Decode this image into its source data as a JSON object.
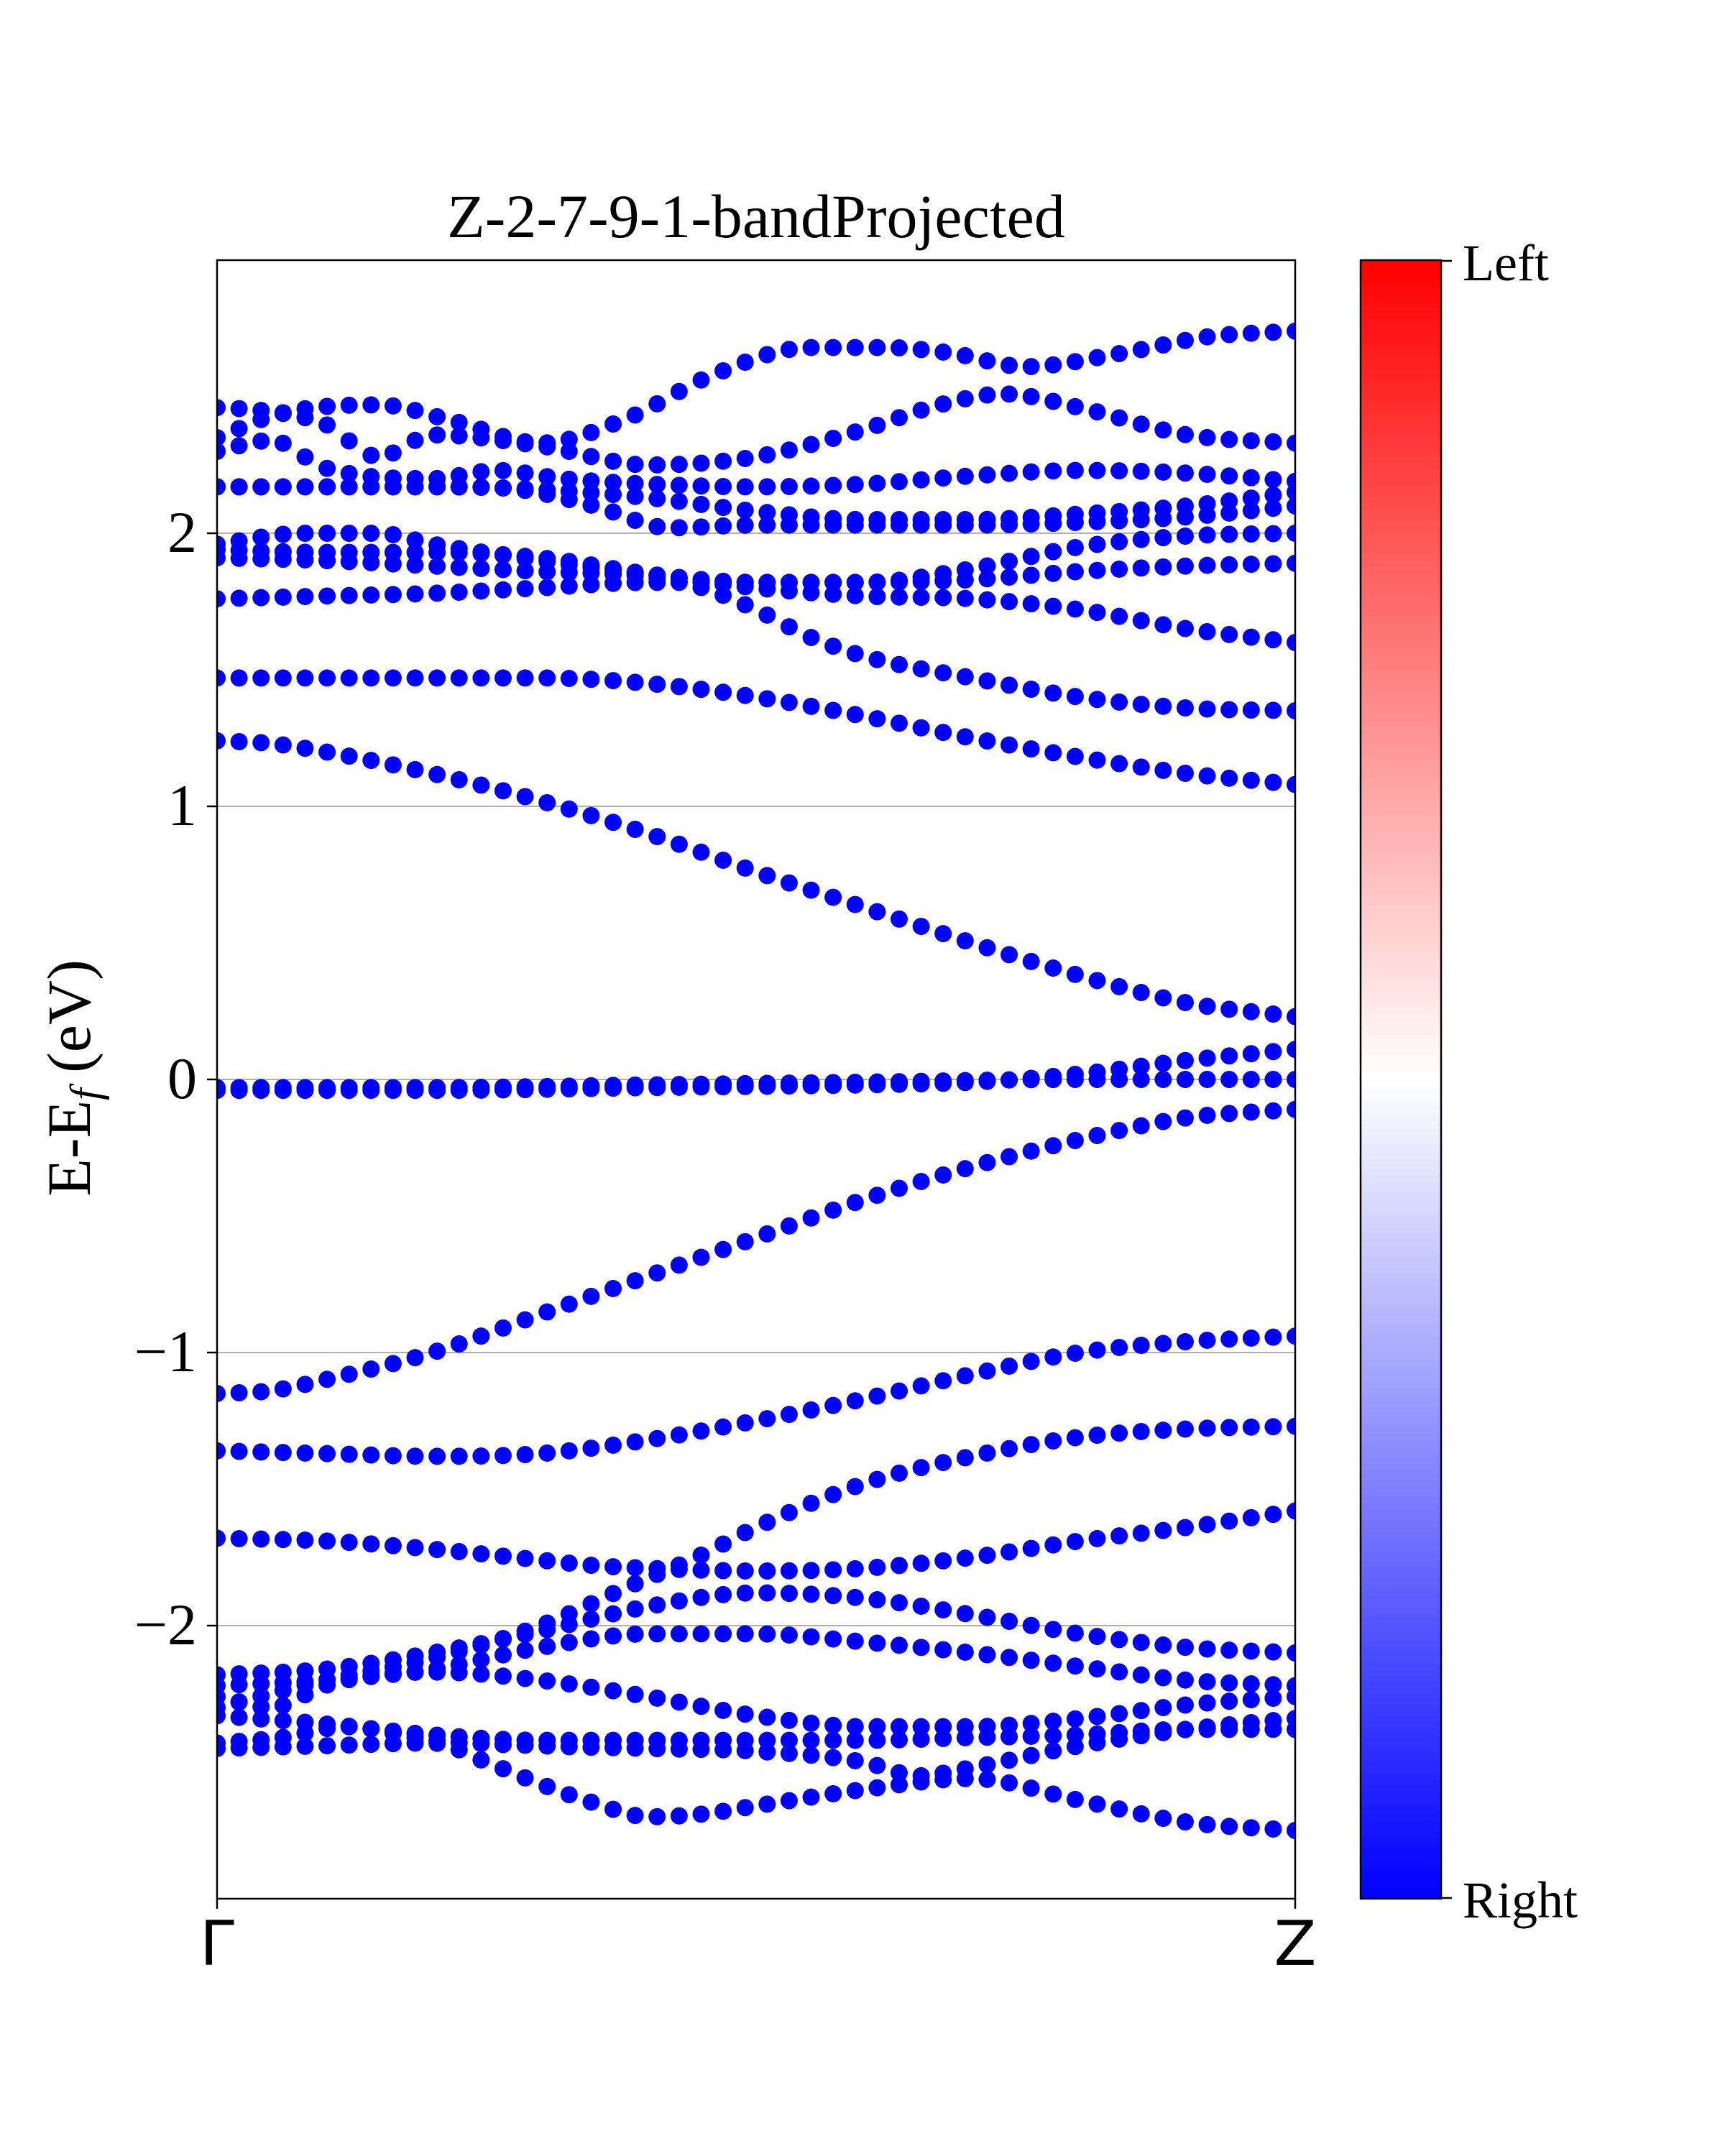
{
  "chart_data": {
    "type": "scatter",
    "title": "Z-2-7-9-1-bandProjected",
    "ylabel_main": "E-E",
    "ylabel_sub": "f",
    "ylabel_tail": " (eV)",
    "xlabel": "",
    "xlim": [
      0,
      1
    ],
    "ylim": [
      -3.0,
      3.0
    ],
    "yticks": [
      {
        "value": -2,
        "label": "−2"
      },
      {
        "value": -1,
        "label": "−1"
      },
      {
        "value": 0,
        "label": "0"
      },
      {
        "value": 1,
        "label": "1"
      },
      {
        "value": 2,
        "label": "2"
      }
    ],
    "xticks": [
      {
        "value": 0,
        "label": "Γ"
      },
      {
        "value": 1,
        "label": "Z"
      }
    ],
    "grid": "horizontal",
    "marker_color": "#0000ff",
    "points_per_band": 50,
    "colorbar": {
      "top_label": "Left",
      "bottom_label": "Right",
      "cmap": [
        "#0000ff",
        "#ffffff",
        "#ff0000"
      ]
    },
    "series": [
      {
        "x": [
          0,
          0.06,
          0.15,
          0.22,
          0.3,
          0.38,
          0.46,
          0.55,
          0.62,
          0.68,
          0.75,
          0.84,
          0.92,
          1.0
        ],
        "y": [
          2.35,
          2.44,
          2.47,
          2.41,
          2.33,
          2.42,
          2.58,
          2.68,
          2.68,
          2.66,
          2.61,
          2.66,
          2.72,
          2.74
        ]
      },
      {
        "x": [
          0,
          0.04,
          0.1,
          0.15,
          0.2,
          0.3,
          0.4,
          0.5,
          0.6,
          0.67,
          0.73,
          0.8,
          0.9,
          1.0
        ],
        "y": [
          2.46,
          2.45,
          2.4,
          2.28,
          2.36,
          2.32,
          2.25,
          2.28,
          2.38,
          2.47,
          2.51,
          2.46,
          2.36,
          2.33
        ]
      },
      {
        "x": [
          0,
          0.05,
          0.1,
          0.2,
          0.26,
          0.32,
          0.4,
          0.5,
          0.6,
          0.7,
          0.8,
          0.9,
          1.0
        ],
        "y": [
          2.3,
          2.34,
          2.24,
          2.2,
          2.23,
          2.2,
          2.18,
          2.17,
          2.18,
          2.21,
          2.23,
          2.22,
          2.19
        ]
      },
      {
        "x": [
          0,
          0.1,
          0.2,
          0.3,
          0.4,
          0.5,
          0.6,
          0.7,
          0.8,
          0.9,
          1.0
        ],
        "y": [
          2.17,
          2.17,
          2.17,
          2.16,
          2.13,
          2.08,
          2.05,
          2.05,
          2.07,
          2.1,
          2.15
        ]
      },
      {
        "x": [
          0,
          0.1,
          0.2,
          0.28,
          0.35,
          0.42,
          0.5,
          0.6,
          0.7,
          0.8,
          0.9,
          1.0
        ],
        "y": [
          2.17,
          2.17,
          2.17,
          2.16,
          2.1,
          2.02,
          2.03,
          2.03,
          2.03,
          2.04,
          2.06,
          2.1
        ]
      },
      {
        "x": [
          0,
          0.08,
          0.15,
          0.2,
          0.3,
          0.4,
          0.5,
          0.6,
          0.7,
          0.8,
          0.9,
          1.0
        ],
        "y": [
          1.96,
          2.0,
          2.0,
          1.96,
          1.9,
          1.85,
          1.82,
          1.82,
          1.87,
          1.95,
          1.99,
          2.0
        ]
      },
      {
        "x": [
          0,
          0.1,
          0.2,
          0.3,
          0.4,
          0.5,
          0.6,
          0.7,
          0.8,
          0.9,
          1.0
        ],
        "y": [
          1.94,
          1.93,
          1.93,
          1.91,
          1.85,
          1.8,
          1.77,
          1.76,
          1.72,
          1.65,
          1.6
        ]
      },
      {
        "x": [
          0,
          0.1,
          0.2,
          0.3,
          0.4,
          0.45,
          0.5,
          0.55,
          0.6,
          0.7,
          0.8,
          0.9,
          1.0
        ],
        "y": [
          1.91,
          1.9,
          1.88,
          1.86,
          1.84,
          1.8,
          1.72,
          1.62,
          1.55,
          1.47,
          1.4,
          1.36,
          1.35
        ]
      },
      {
        "x": [
          0,
          0.1,
          0.2,
          0.3,
          0.4,
          0.45,
          0.5,
          0.6,
          0.7,
          0.8,
          0.9,
          1.0
        ],
        "y": [
          1.76,
          1.77,
          1.78,
          1.8,
          1.82,
          1.82,
          1.82,
          1.82,
          1.83,
          1.86,
          1.88,
          1.89
        ]
      },
      {
        "x": [
          0,
          0.1,
          0.2,
          0.3,
          0.4,
          0.5,
          0.6,
          0.7,
          0.8,
          0.9,
          1.0
        ],
        "y": [
          1.47,
          1.47,
          1.47,
          1.47,
          1.45,
          1.4,
          1.33,
          1.25,
          1.18,
          1.12,
          1.08
        ]
      },
      {
        "x": [
          0,
          0.05,
          0.1,
          0.2,
          0.3,
          0.4,
          0.5,
          0.6,
          0.7,
          0.8,
          0.9,
          1.0
        ],
        "y": [
          1.24,
          1.23,
          1.2,
          1.12,
          1.02,
          0.9,
          0.76,
          0.63,
          0.5,
          0.38,
          0.28,
          0.23
        ]
      },
      {
        "x": [
          0,
          0.2,
          0.4,
          0.6,
          0.8,
          0.9,
          1.0
        ],
        "y": [
          -0.03,
          -0.03,
          -0.02,
          -0.01,
          0.0,
          0.0,
          0.0
        ]
      },
      {
        "x": [
          0,
          0.2,
          0.4,
          0.6,
          0.7,
          0.8,
          0.9,
          1.0
        ],
        "y": [
          -0.04,
          -0.04,
          -0.03,
          -0.02,
          -0.01,
          0.02,
          0.07,
          0.11
        ]
      },
      {
        "x": [
          0,
          0.05,
          0.1,
          0.2,
          0.3,
          0.4,
          0.5,
          0.6,
          0.7,
          0.8,
          0.9,
          1.0
        ],
        "y": [
          -1.15,
          -1.14,
          -1.1,
          -1.0,
          -0.86,
          -0.72,
          -0.58,
          -0.44,
          -0.32,
          -0.22,
          -0.14,
          -0.11
        ]
      },
      {
        "x": [
          0,
          0.1,
          0.2,
          0.3,
          0.4,
          0.5,
          0.6,
          0.7,
          0.8,
          0.9,
          1.0
        ],
        "y": [
          -1.36,
          -1.37,
          -1.38,
          -1.37,
          -1.32,
          -1.25,
          -1.17,
          -1.08,
          -1.0,
          -0.96,
          -0.94
        ]
      },
      {
        "x": [
          0,
          0.1,
          0.2,
          0.3,
          0.35,
          0.4,
          0.5,
          0.6,
          0.7,
          0.8,
          0.9,
          1.0
        ],
        "y": [
          -1.68,
          -1.69,
          -1.72,
          -1.76,
          -1.78,
          -1.79,
          -1.8,
          -1.79,
          -1.75,
          -1.69,
          -1.64,
          -1.58
        ]
      },
      {
        "x": [
          0,
          0.1,
          0.2,
          0.3,
          0.38,
          0.45,
          0.5,
          0.6,
          0.7,
          0.8,
          0.9,
          1.0
        ],
        "y": [
          -2.3,
          -2.2,
          -2.12,
          -2.0,
          -1.86,
          -1.74,
          -1.64,
          -1.48,
          -1.38,
          -1.31,
          -1.28,
          -1.27
        ]
      },
      {
        "x": [
          0,
          0.1,
          0.2,
          0.3,
          0.4,
          0.5,
          0.6,
          0.7,
          0.8,
          0.9,
          1.0
        ],
        "y": [
          -2.18,
          -2.16,
          -2.1,
          -2.02,
          -1.93,
          -1.88,
          -1.9,
          -1.96,
          -2.03,
          -2.08,
          -2.1
        ]
      },
      {
        "x": [
          0,
          0.1,
          0.2,
          0.3,
          0.4,
          0.5,
          0.6,
          0.7,
          0.8,
          0.9,
          1.0
        ],
        "y": [
          -2.22,
          -2.2,
          -2.16,
          -2.08,
          -2.03,
          -2.03,
          -2.06,
          -2.1,
          -2.15,
          -2.2,
          -2.22
        ]
      },
      {
        "x": [
          0,
          0.05,
          0.1,
          0.15,
          0.2,
          0.3,
          0.4,
          0.5,
          0.6,
          0.7,
          0.8,
          0.9,
          1.0
        ],
        "y": [
          -2.26,
          -2.3,
          -2.22,
          -2.18,
          -2.17,
          -2.2,
          -2.26,
          -2.33,
          -2.37,
          -2.37,
          -2.34,
          -2.29,
          -2.26
        ]
      },
      {
        "x": [
          0,
          0.1,
          0.2,
          0.3,
          0.4,
          0.5,
          0.6,
          0.7,
          0.8,
          0.9,
          1.0
        ],
        "y": [
          -2.33,
          -2.36,
          -2.4,
          -2.42,
          -2.42,
          -2.42,
          -2.42,
          -2.41,
          -2.4,
          -2.38,
          -2.38
        ]
      },
      {
        "x": [
          0,
          0.06,
          0.12,
          0.2,
          0.3,
          0.4,
          0.5,
          0.6,
          0.65,
          0.7,
          0.8,
          0.9,
          1.0
        ],
        "y": [
          -2.43,
          -2.41,
          -2.37,
          -2.42,
          -2.44,
          -2.45,
          -2.46,
          -2.5,
          -2.55,
          -2.52,
          -2.44,
          -2.38,
          -2.34
        ]
      },
      {
        "x": [
          0,
          0.1,
          0.2,
          0.25,
          0.3,
          0.35,
          0.4,
          0.45,
          0.5,
          0.6,
          0.7,
          0.8,
          0.9,
          1.0
        ],
        "y": [
          -2.45,
          -2.44,
          -2.43,
          -2.5,
          -2.58,
          -2.65,
          -2.7,
          -2.69,
          -2.66,
          -2.6,
          -2.56,
          -2.64,
          -2.72,
          -2.75
        ]
      }
    ]
  }
}
